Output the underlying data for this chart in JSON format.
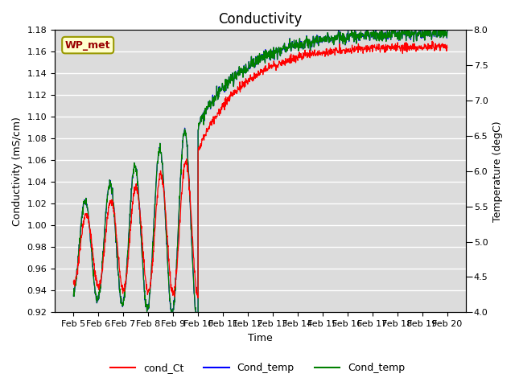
{
  "title": "Conductivity",
  "xlabel": "Time",
  "ylabel_left": "Conductivity (mS/cm)",
  "ylabel_right": "Temperature (degC)",
  "ylim_left": [
    0.92,
    1.18
  ],
  "ylim_right": [
    4.0,
    8.0
  ],
  "yticks_left": [
    0.92,
    0.94,
    0.96,
    0.98,
    1.0,
    1.02,
    1.04,
    1.06,
    1.08,
    1.1,
    1.12,
    1.14,
    1.16,
    1.18
  ],
  "yticks_right": [
    4.0,
    4.5,
    5.0,
    5.5,
    6.0,
    6.5,
    7.0,
    7.5,
    8.0
  ],
  "xtick_labels": [
    "Feb 5",
    "Feb 6",
    "Feb 7",
    "Feb 8",
    "Feb 9",
    "Feb 10",
    "Feb 11",
    "Feb 12",
    "Feb 13",
    "Feb 14",
    "Feb 15",
    "Feb 16",
    "Feb 17",
    "Feb 18",
    "Feb 19",
    "Feb 20"
  ],
  "legend_label_box": "WP_met",
  "legend_entries": [
    "cond_Ct",
    "Cond_temp",
    "Cond_temp"
  ],
  "legend_colors": [
    "red",
    "blue",
    "green"
  ],
  "bg_color": "#dcdcdc",
  "grid_color": "white",
  "title_fontsize": 12,
  "axis_fontsize": 9,
  "tick_fontsize": 8
}
